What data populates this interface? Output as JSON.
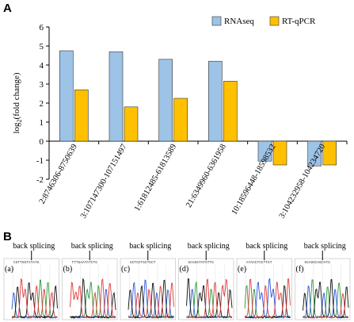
{
  "panel_a_label": "A",
  "panel_b_label": "B",
  "chart_data": {
    "type": "bar",
    "ylabel": "log2(fold change)",
    "ylim": [
      -2,
      6
    ],
    "yticks": [
      -2,
      -1,
      0,
      1,
      2,
      3,
      4,
      5,
      6
    ],
    "categories": [
      "2:8746306-8750639",
      "3:107147300-107151497",
      "1:61812485-61813589",
      "21:6349960-6361958",
      "10:18596448-18598532",
      "3:104232958-104234720"
    ],
    "series": [
      {
        "name": "RNAseq",
        "color": "#9dc3e6",
        "values": [
          4.75,
          4.7,
          4.3,
          4.2,
          -1.05,
          -1.3
        ]
      },
      {
        "name": "RT-qPCR",
        "color": "#ffc000",
        "values": [
          2.7,
          1.8,
          2.25,
          3.15,
          -1.25,
          -1.25
        ]
      }
    ],
    "legend_position": "top-right",
    "grid": false
  },
  "panel_b": {
    "back_splicing_label": "back splicing",
    "traces": [
      {
        "letter": "(a)",
        "sequence": "CGTTGGTATATG"
      },
      {
        "letter": "(b)",
        "sequence": "TTTGAATATCTG"
      },
      {
        "letter": "(c)",
        "sequence": "GCTGCTGCTGCT"
      },
      {
        "letter": "(d)",
        "sequence": "GCAGGTATGTTG"
      },
      {
        "letter": "(e)",
        "sequence": "ATACCTCCTTGT"
      },
      {
        "letter": "(f)",
        "sequence": "GCAGGCAGCATG"
      }
    ]
  }
}
